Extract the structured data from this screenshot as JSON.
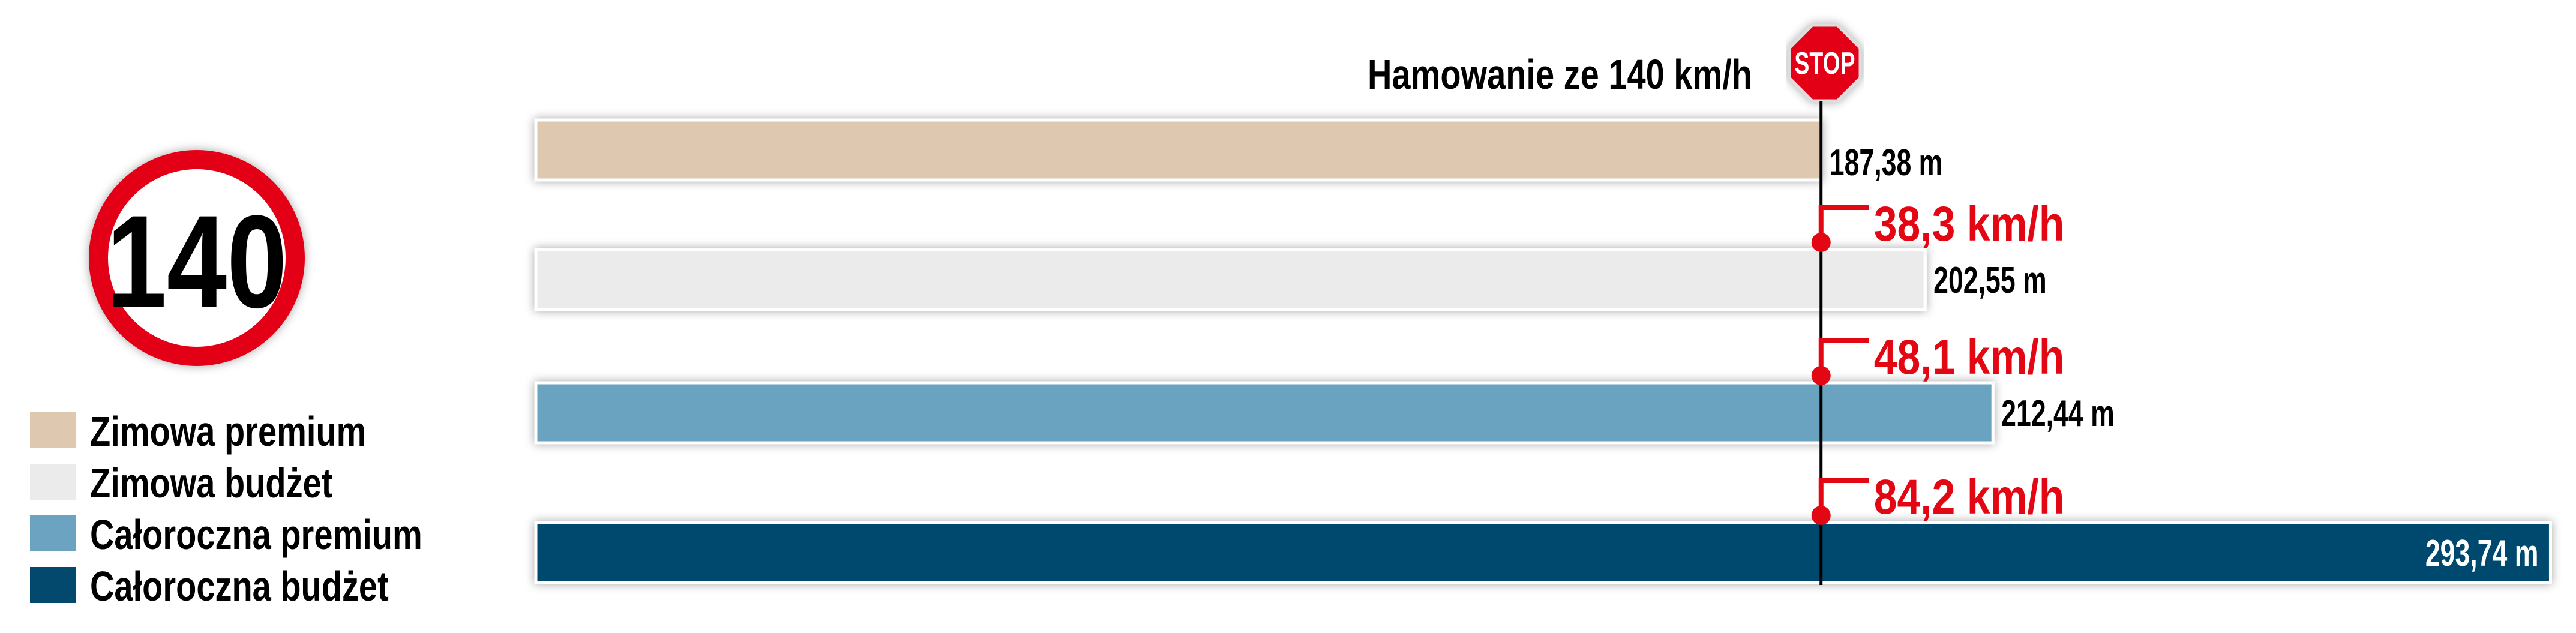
{
  "chart_data": {
    "type": "bar",
    "orientation": "horizontal",
    "title": "Hamowanie ze 140 km/h",
    "unit": "m",
    "categories": [
      "Zimowa premium",
      "Zimowa budżet",
      "Całoroczna premium",
      "Całoroczna budżet"
    ],
    "values": [
      187.38,
      202.55,
      212.44,
      293.74
    ],
    "value_labels": [
      "187,38 m",
      "202,55 m",
      "212,44 m",
      "293,74 m"
    ],
    "colors": [
      "#dfc8b0",
      "#ebebeb",
      "#6ba3c0",
      "#03496e"
    ],
    "speed_differences": [
      "38,3 km/h",
      "48,1 km/h",
      "84,2 km/h"
    ],
    "reference_value": 187.38,
    "legend_placement": "left",
    "grid": false
  },
  "speed_sign": {
    "value": "140"
  },
  "stop_sign": {
    "label": "STOP"
  },
  "accent_color": "#e30613"
}
